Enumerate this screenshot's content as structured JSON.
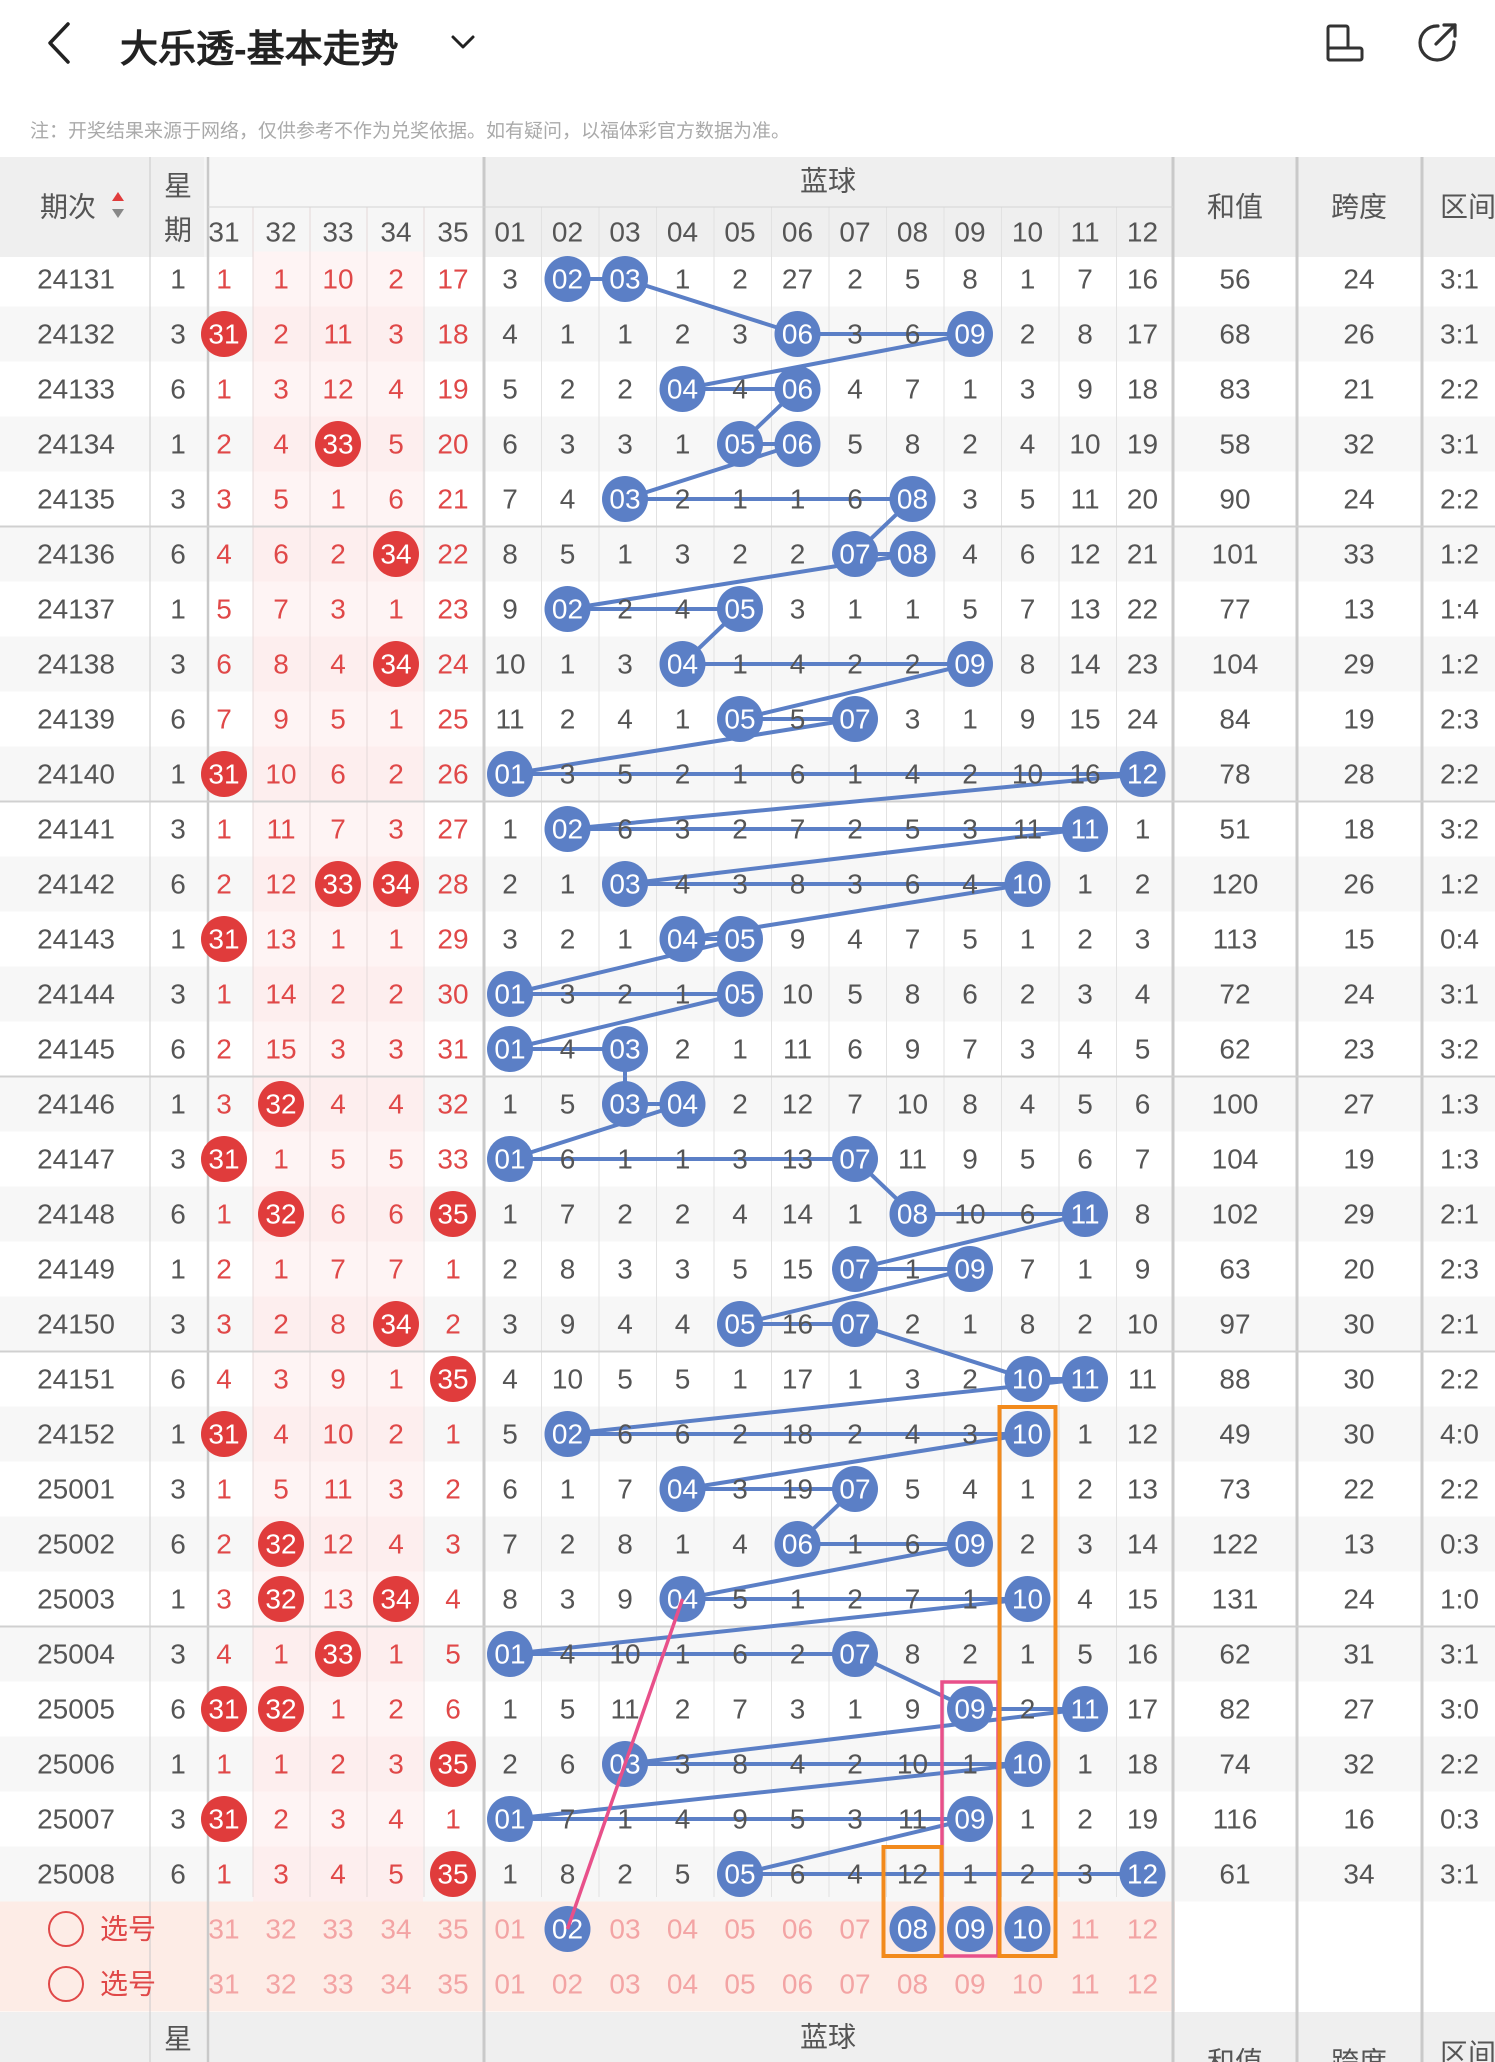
{
  "header": {
    "title": "大乐透-基本走势",
    "notice": "注：开奖结果来源于网络，仅供参考不作为兑奖依据。如有疑问，以福体彩官方数据为准。"
  },
  "table": {
    "col_period": "期次",
    "col_week_1": "星",
    "col_week_2": "期",
    "blue_group_title": "蓝球",
    "col_sum": "和值",
    "col_span": "跨度",
    "col_zone": "区间",
    "red_cols": [
      "31",
      "32",
      "33",
      "34",
      "35"
    ],
    "blue_cols": [
      "01",
      "02",
      "03",
      "04",
      "05",
      "06",
      "07",
      "08",
      "09",
      "10",
      "11",
      "12"
    ],
    "select_label": "选号",
    "rows": [
      {
        "p": "24131",
        "w": "1",
        "red": [
          "1",
          "1",
          "10",
          "2",
          "17"
        ],
        "rhit": [],
        "blue": [
          "3",
          "02",
          "03",
          "1",
          "2",
          "27",
          "2",
          "5",
          "8",
          "1",
          "7",
          "16"
        ],
        "bhit": [
          2,
          3
        ],
        "sum": "56",
        "span": "24",
        "zone": "3:1"
      },
      {
        "p": "24132",
        "w": "3",
        "red": [
          "31",
          "2",
          "11",
          "3",
          "18"
        ],
        "rhit": [
          31
        ],
        "blue": [
          "4",
          "1",
          "1",
          "2",
          "3",
          "06",
          "3",
          "6",
          "09",
          "2",
          "8",
          "17"
        ],
        "bhit": [
          6,
          9
        ],
        "sum": "68",
        "span": "26",
        "zone": "3:1"
      },
      {
        "p": "24133",
        "w": "6",
        "red": [
          "1",
          "3",
          "12",
          "4",
          "19"
        ],
        "rhit": [],
        "blue": [
          "5",
          "2",
          "2",
          "04",
          "4",
          "06",
          "4",
          "7",
          "1",
          "3",
          "9",
          "18"
        ],
        "bhit": [
          4,
          6
        ],
        "sum": "83",
        "span": "21",
        "zone": "2:2"
      },
      {
        "p": "24134",
        "w": "1",
        "red": [
          "2",
          "4",
          "33",
          "5",
          "20"
        ],
        "rhit": [
          33
        ],
        "blue": [
          "6",
          "3",
          "3",
          "1",
          "05",
          "06",
          "5",
          "8",
          "2",
          "4",
          "10",
          "19"
        ],
        "bhit": [
          5,
          6
        ],
        "sum": "58",
        "span": "32",
        "zone": "3:1"
      },
      {
        "p": "24135",
        "w": "3",
        "red": [
          "3",
          "5",
          "1",
          "6",
          "21"
        ],
        "rhit": [],
        "blue": [
          "7",
          "4",
          "03",
          "2",
          "1",
          "1",
          "6",
          "08",
          "3",
          "5",
          "11",
          "20"
        ],
        "bhit": [
          3,
          8
        ],
        "sum": "90",
        "span": "24",
        "zone": "2:2"
      },
      {
        "p": "24136",
        "w": "6",
        "red": [
          "4",
          "6",
          "2",
          "34",
          "22"
        ],
        "rhit": [
          34
        ],
        "blue": [
          "8",
          "5",
          "1",
          "3",
          "2",
          "2",
          "07",
          "08",
          "4",
          "6",
          "12",
          "21"
        ],
        "bhit": [
          7,
          8
        ],
        "sum": "101",
        "span": "33",
        "zone": "1:2"
      },
      {
        "p": "24137",
        "w": "1",
        "red": [
          "5",
          "7",
          "3",
          "1",
          "23"
        ],
        "rhit": [],
        "blue": [
          "9",
          "02",
          "2",
          "4",
          "05",
          "3",
          "1",
          "1",
          "5",
          "7",
          "13",
          "22"
        ],
        "bhit": [
          2,
          5
        ],
        "sum": "77",
        "span": "13",
        "zone": "1:4"
      },
      {
        "p": "24138",
        "w": "3",
        "red": [
          "6",
          "8",
          "4",
          "34",
          "24"
        ],
        "rhit": [
          34
        ],
        "blue": [
          "10",
          "1",
          "3",
          "04",
          "1",
          "4",
          "2",
          "2",
          "09",
          "8",
          "14",
          "23"
        ],
        "bhit": [
          4,
          9
        ],
        "sum": "104",
        "span": "29",
        "zone": "1:2"
      },
      {
        "p": "24139",
        "w": "6",
        "red": [
          "7",
          "9",
          "5",
          "1",
          "25"
        ],
        "rhit": [],
        "blue": [
          "11",
          "2",
          "4",
          "1",
          "05",
          "5",
          "07",
          "3",
          "1",
          "9",
          "15",
          "24"
        ],
        "bhit": [
          5,
          7
        ],
        "sum": "84",
        "span": "19",
        "zone": "2:3"
      },
      {
        "p": "24140",
        "w": "1",
        "red": [
          "31",
          "10",
          "6",
          "2",
          "26"
        ],
        "rhit": [
          31
        ],
        "blue": [
          "01",
          "3",
          "5",
          "2",
          "1",
          "6",
          "1",
          "4",
          "2",
          "10",
          "16",
          "12"
        ],
        "bhit": [
          1,
          12
        ],
        "sum": "78",
        "span": "28",
        "zone": "2:2"
      },
      {
        "p": "24141",
        "w": "3",
        "red": [
          "1",
          "11",
          "7",
          "3",
          "27"
        ],
        "rhit": [],
        "blue": [
          "1",
          "02",
          "6",
          "3",
          "2",
          "7",
          "2",
          "5",
          "3",
          "11",
          "11",
          "1"
        ],
        "bhit": [
          2,
          11
        ],
        "sum": "51",
        "span": "18",
        "zone": "3:2"
      },
      {
        "p": "24142",
        "w": "6",
        "red": [
          "2",
          "12",
          "33",
          "34",
          "28"
        ],
        "rhit": [
          33,
          34
        ],
        "blue": [
          "2",
          "1",
          "03",
          "4",
          "3",
          "8",
          "3",
          "6",
          "4",
          "10",
          "1",
          "2"
        ],
        "bhit": [
          3,
          10
        ],
        "sum": "120",
        "span": "26",
        "zone": "1:2"
      },
      {
        "p": "24143",
        "w": "1",
        "red": [
          "31",
          "13",
          "1",
          "1",
          "29"
        ],
        "rhit": [
          31
        ],
        "blue": [
          "3",
          "2",
          "1",
          "04",
          "05",
          "9",
          "4",
          "7",
          "5",
          "1",
          "2",
          "3"
        ],
        "bhit": [
          4,
          5
        ],
        "sum": "113",
        "span": "15",
        "zone": "0:4"
      },
      {
        "p": "24144",
        "w": "3",
        "red": [
          "1",
          "14",
          "2",
          "2",
          "30"
        ],
        "rhit": [],
        "blue": [
          "01",
          "3",
          "2",
          "1",
          "05",
          "10",
          "5",
          "8",
          "6",
          "2",
          "3",
          "4"
        ],
        "bhit": [
          1,
          5
        ],
        "sum": "72",
        "span": "24",
        "zone": "3:1"
      },
      {
        "p": "24145",
        "w": "6",
        "red": [
          "2",
          "15",
          "3",
          "3",
          "31"
        ],
        "rhit": [],
        "blue": [
          "01",
          "4",
          "03",
          "2",
          "1",
          "11",
          "6",
          "9",
          "7",
          "3",
          "4",
          "5"
        ],
        "bhit": [
          1,
          3
        ],
        "sum": "62",
        "span": "23",
        "zone": "3:2"
      },
      {
        "p": "24146",
        "w": "1",
        "red": [
          "3",
          "32",
          "4",
          "4",
          "32"
        ],
        "rhit": [
          32
        ],
        "blue": [
          "1",
          "5",
          "03",
          "04",
          "2",
          "12",
          "7",
          "10",
          "8",
          "4",
          "5",
          "6"
        ],
        "bhit": [
          3,
          4
        ],
        "sum": "100",
        "span": "27",
        "zone": "1:3"
      },
      {
        "p": "24147",
        "w": "3",
        "red": [
          "31",
          "1",
          "5",
          "5",
          "33"
        ],
        "rhit": [
          31
        ],
        "blue": [
          "01",
          "6",
          "1",
          "1",
          "3",
          "13",
          "07",
          "11",
          "9",
          "5",
          "6",
          "7"
        ],
        "bhit": [
          1,
          7
        ],
        "sum": "104",
        "span": "19",
        "zone": "1:3"
      },
      {
        "p": "24148",
        "w": "6",
        "red": [
          "1",
          "32",
          "6",
          "6",
          "35"
        ],
        "rhit": [
          32,
          35
        ],
        "blue": [
          "1",
          "7",
          "2",
          "2",
          "4",
          "14",
          "1",
          "08",
          "10",
          "6",
          "11",
          "8"
        ],
        "bhit": [
          8,
          11
        ],
        "sum": "102",
        "span": "29",
        "zone": "2:1"
      },
      {
        "p": "24149",
        "w": "1",
        "red": [
          "2",
          "1",
          "7",
          "7",
          "1"
        ],
        "rhit": [],
        "blue": [
          "2",
          "8",
          "3",
          "3",
          "5",
          "15",
          "07",
          "1",
          "09",
          "7",
          "1",
          "9"
        ],
        "bhit": [
          7,
          9
        ],
        "sum": "63",
        "span": "20",
        "zone": "2:3"
      },
      {
        "p": "24150",
        "w": "3",
        "red": [
          "3",
          "2",
          "8",
          "34",
          "2"
        ],
        "rhit": [
          34
        ],
        "blue": [
          "3",
          "9",
          "4",
          "4",
          "05",
          "16",
          "07",
          "2",
          "1",
          "8",
          "2",
          "10"
        ],
        "bhit": [
          5,
          7
        ],
        "sum": "97",
        "span": "30",
        "zone": "2:1"
      },
      {
        "p": "24151",
        "w": "6",
        "red": [
          "4",
          "3",
          "9",
          "1",
          "35"
        ],
        "rhit": [
          35
        ],
        "blue": [
          "4",
          "10",
          "5",
          "5",
          "1",
          "17",
          "1",
          "3",
          "2",
          "10",
          "11",
          "11"
        ],
        "bhit": [
          10,
          11
        ],
        "sum": "88",
        "span": "30",
        "zone": "2:2"
      },
      {
        "p": "24152",
        "w": "1",
        "red": [
          "31",
          "4",
          "10",
          "2",
          "1"
        ],
        "rhit": [
          31
        ],
        "blue": [
          "5",
          "02",
          "6",
          "6",
          "2",
          "18",
          "2",
          "4",
          "3",
          "10",
          "1",
          "12"
        ],
        "bhit": [
          2,
          10
        ],
        "sum": "49",
        "span": "30",
        "zone": "4:0"
      },
      {
        "p": "25001",
        "w": "3",
        "red": [
          "1",
          "5",
          "11",
          "3",
          "2"
        ],
        "rhit": [],
        "blue": [
          "6",
          "1",
          "7",
          "04",
          "3",
          "19",
          "07",
          "5",
          "4",
          "1",
          "2",
          "13"
        ],
        "bhit": [
          4,
          7
        ],
        "sum": "73",
        "span": "22",
        "zone": "2:2"
      },
      {
        "p": "25002",
        "w": "6",
        "red": [
          "2",
          "32",
          "12",
          "4",
          "3"
        ],
        "rhit": [
          32
        ],
        "blue": [
          "7",
          "2",
          "8",
          "1",
          "4",
          "06",
          "1",
          "6",
          "09",
          "2",
          "3",
          "14"
        ],
        "bhit": [
          6,
          9
        ],
        "sum": "122",
        "span": "13",
        "zone": "0:3"
      },
      {
        "p": "25003",
        "w": "1",
        "red": [
          "3",
          "32",
          "13",
          "34",
          "4"
        ],
        "rhit": [
          32,
          34
        ],
        "blue": [
          "8",
          "3",
          "9",
          "04",
          "5",
          "1",
          "2",
          "7",
          "1",
          "10",
          "4",
          "15"
        ],
        "bhit": [
          4,
          10
        ],
        "sum": "131",
        "span": "24",
        "zone": "1:0"
      },
      {
        "p": "25004",
        "w": "3",
        "red": [
          "4",
          "1",
          "33",
          "1",
          "5"
        ],
        "rhit": [
          33
        ],
        "blue": [
          "01",
          "4",
          "10",
          "1",
          "6",
          "2",
          "07",
          "8",
          "2",
          "1",
          "5",
          "16"
        ],
        "bhit": [
          1,
          7
        ],
        "sum": "62",
        "span": "31",
        "zone": "3:1"
      },
      {
        "p": "25005",
        "w": "6",
        "red": [
          "31",
          "32",
          "1",
          "2",
          "6"
        ],
        "rhit": [
          31,
          32
        ],
        "blue": [
          "1",
          "5",
          "11",
          "2",
          "7",
          "3",
          "1",
          "9",
          "09",
          "2",
          "11",
          "17"
        ],
        "bhit": [
          9,
          11
        ],
        "sum": "82",
        "span": "27",
        "zone": "3:0"
      },
      {
        "p": "25006",
        "w": "1",
        "red": [
          "1",
          "1",
          "2",
          "3",
          "35"
        ],
        "rhit": [
          35
        ],
        "blue": [
          "2",
          "6",
          "03",
          "3",
          "8",
          "4",
          "2",
          "10",
          "1",
          "10",
          "1",
          "18"
        ],
        "bhit": [
          3,
          10
        ],
        "sum": "74",
        "span": "32",
        "zone": "2:2"
      },
      {
        "p": "25007",
        "w": "3",
        "red": [
          "31",
          "2",
          "3",
          "4",
          "1"
        ],
        "rhit": [
          31
        ],
        "blue": [
          "01",
          "7",
          "1",
          "4",
          "9",
          "5",
          "3",
          "11",
          "09",
          "1",
          "2",
          "19"
        ],
        "bhit": [
          1,
          9
        ],
        "sum": "116",
        "span": "16",
        "zone": "0:3"
      },
      {
        "p": "25008",
        "w": "6",
        "red": [
          "1",
          "3",
          "4",
          "5",
          "35"
        ],
        "rhit": [
          35
        ],
        "blue": [
          "1",
          "8",
          "2",
          "5",
          "05",
          "6",
          "4",
          "12",
          "1",
          "2",
          "3",
          "12"
        ],
        "bhit": [
          5,
          12
        ],
        "sum": "61",
        "span": "34",
        "zone": "3:1"
      }
    ],
    "predict_hits": [
      2,
      8,
      9,
      10
    ]
  },
  "colors": {
    "red_ball": "#e03c3c",
    "red_text": "#e04848",
    "blue_ball": "#5b7fc6",
    "pink_line": "#e8508a",
    "orange_box": "#f28a1c",
    "select_bg": "#fdece6"
  },
  "icons": [
    "back-icon",
    "dropdown-icon",
    "rotate-screen-icon",
    "share-icon",
    "sort-icon",
    "radio-icon"
  ]
}
